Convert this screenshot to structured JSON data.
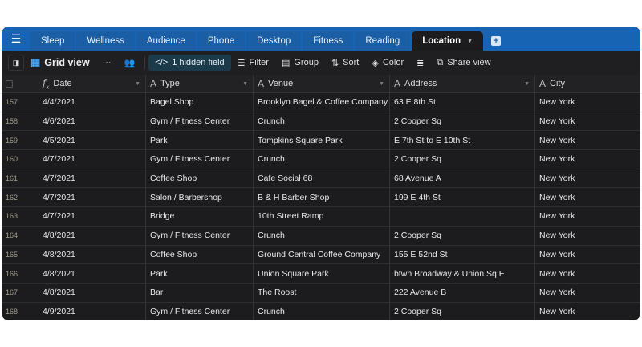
{
  "tabs": [
    {
      "label": "Sleep"
    },
    {
      "label": "Wellness"
    },
    {
      "label": "Audience"
    },
    {
      "label": "Phone"
    },
    {
      "label": "Desktop"
    },
    {
      "label": "Fitness"
    },
    {
      "label": "Reading"
    },
    {
      "label": "Location",
      "active": true
    }
  ],
  "toolbar": {
    "view_name": "Grid view",
    "more": "···",
    "hidden": "1 hidden field",
    "filter": "Filter",
    "group": "Group",
    "sort": "Sort",
    "color": "Color",
    "share": "Share view"
  },
  "columns": [
    {
      "label": "Date",
      "icon": "formula-icon"
    },
    {
      "label": "Type",
      "icon": "text-icon"
    },
    {
      "label": "Venue",
      "icon": "text-icon"
    },
    {
      "label": "Address",
      "icon": "text-icon"
    },
    {
      "label": "City",
      "icon": "text-icon"
    }
  ],
  "rows": [
    {
      "n": "157",
      "date": "4/4/2021",
      "type": "Bagel Shop",
      "venue": "Brooklyn Bagel & Coffee Company",
      "address": "63 E 8th St",
      "city": "New York"
    },
    {
      "n": "158",
      "date": "4/6/2021",
      "type": "Gym / Fitness Center",
      "venue": "Crunch",
      "address": "2 Cooper Sq",
      "city": "New York"
    },
    {
      "n": "159",
      "date": "4/5/2021",
      "type": "Park",
      "venue": "Tompkins Square Park",
      "address": "E 7th St to E 10th St",
      "city": "New York"
    },
    {
      "n": "160",
      "date": "4/7/2021",
      "type": "Gym / Fitness Center",
      "venue": "Crunch",
      "address": "2 Cooper Sq",
      "city": "New York"
    },
    {
      "n": "161",
      "date": "4/7/2021",
      "type": "Coffee Shop",
      "venue": "Cafe Social 68",
      "address": "68 Avenue A",
      "city": "New York"
    },
    {
      "n": "162",
      "date": "4/7/2021",
      "type": "Salon / Barbershop",
      "venue": "B & H Barber Shop",
      "address": "199 E 4th St",
      "city": "New York"
    },
    {
      "n": "163",
      "date": "4/7/2021",
      "type": "Bridge",
      "venue": "10th Street Ramp",
      "address": "",
      "city": "New York"
    },
    {
      "n": "164",
      "date": "4/8/2021",
      "type": "Gym / Fitness Center",
      "venue": "Crunch",
      "address": "2 Cooper Sq",
      "city": "New York"
    },
    {
      "n": "165",
      "date": "4/8/2021",
      "type": "Coffee Shop",
      "venue": "Ground Central Coffee Company",
      "address": "155 E 52nd St",
      "city": "New York"
    },
    {
      "n": "166",
      "date": "4/8/2021",
      "type": "Park",
      "venue": "Union Square Park",
      "address": "btwn Broadway & Union Sq E",
      "city": "New York"
    },
    {
      "n": "167",
      "date": "4/8/2021",
      "type": "Bar",
      "venue": "The Roost",
      "address": "222 Avenue B",
      "city": "New York"
    },
    {
      "n": "168",
      "date": "4/9/2021",
      "type": "Gym / Fitness Center",
      "venue": "Crunch",
      "address": "2 Cooper Sq",
      "city": "New York"
    }
  ]
}
